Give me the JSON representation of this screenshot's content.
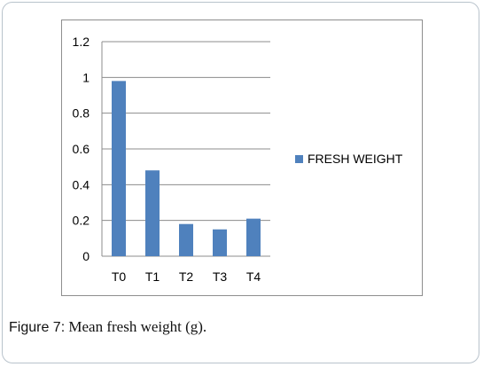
{
  "chart_data": {
    "type": "bar",
    "categories": [
      "T0",
      "T1",
      "T2",
      "T3",
      "T4"
    ],
    "series": [
      {
        "name": "FRESH WEIGHT",
        "values": [
          0.98,
          0.48,
          0.18,
          0.15,
          0.21
        ]
      }
    ],
    "ylim": [
      0,
      1.2
    ],
    "yticks": [
      0,
      0.2,
      0.4,
      0.6,
      0.8,
      1,
      1.2
    ],
    "ytick_labels": [
      "0",
      "0.2",
      "0.4",
      "0.6",
      "0.8",
      "1",
      "1.2"
    ],
    "grid": true,
    "legend_position": "right",
    "colors": {
      "bar": "#4f81bd",
      "grid": "#8c8c8c"
    }
  },
  "caption": {
    "label": "Figure 7:",
    "text": " Mean fresh weight (g)."
  }
}
